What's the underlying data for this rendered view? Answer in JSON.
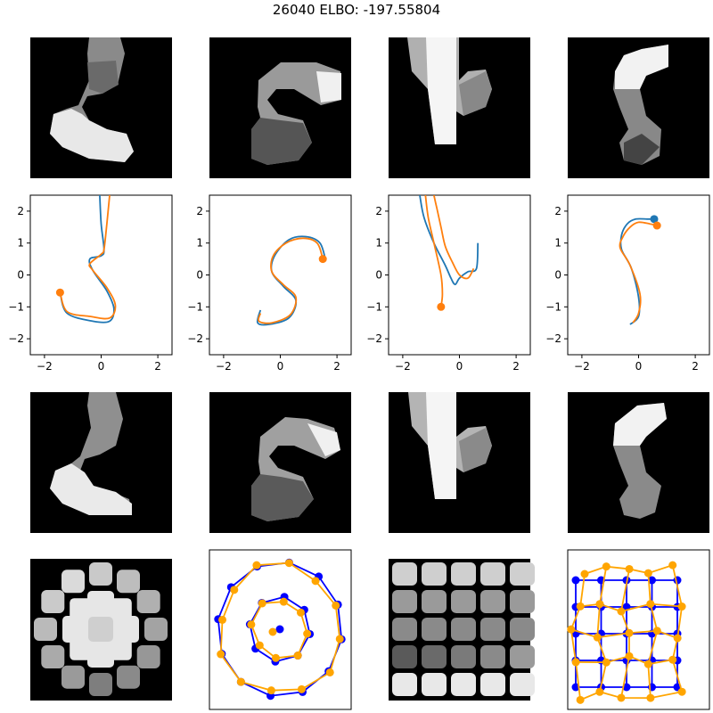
{
  "title": "26040 ELBO: -197.55804",
  "colors": {
    "series1": "#1f77b4",
    "series2": "#ff7f0e",
    "grid_blue": "#0000ff",
    "grid_orange": "#ffa500"
  },
  "chart_data": [
    {
      "type": "heatmap",
      "row": 1,
      "panels": [
        "image-1 (digit-like grayscale)",
        "image-2",
        "image-3",
        "image-4"
      ]
    },
    {
      "type": "line",
      "row": 2,
      "xlim": [
        -2.5,
        2.5
      ],
      "ylim": [
        -2.5,
        2.5
      ],
      "xticks": [
        -2,
        0,
        2
      ],
      "yticks": [
        2,
        1,
        0,
        -1,
        -2
      ],
      "panels": [
        {
          "series": [
            {
              "color": "#1f77b4",
              "x": [
                -0.05,
                0.0,
                0.1,
                0.0,
                -0.4,
                -0.3,
                0.2,
                0.45,
                0.3,
                -0.3,
                -1.2,
                -1.45
              ],
              "y": [
                2.5,
                1.6,
                0.8,
                0.6,
                0.5,
                0.15,
                -0.5,
                -1.05,
                -1.45,
                -1.45,
                -1.2,
                -0.55
              ]
            },
            {
              "color": "#ff7f0e",
              "x": [
                0.3,
                0.2,
                0.1,
                0.0,
                -0.4,
                -0.3,
                0.2,
                0.5,
                0.3,
                -0.4,
                -1.2,
                -1.45
              ],
              "y": [
                2.5,
                1.6,
                0.8,
                0.65,
                0.35,
                0.15,
                -0.4,
                -0.95,
                -1.35,
                -1.3,
                -1.15,
                -0.55
              ],
              "marker_end": [
                -1.45,
                -0.55
              ]
            }
          ]
        },
        {
          "series": [
            {
              "color": "#1f77b4",
              "x": [
                1.6,
                1.4,
                0.9,
                0.3,
                -0.2,
                -0.3,
                0.1,
                0.55,
                0.3,
                -0.4,
                -0.8,
                -0.7
              ],
              "y": [
                0.45,
                1.0,
                1.2,
                1.1,
                0.6,
                0.1,
                -0.35,
                -0.8,
                -1.35,
                -1.55,
                -1.5,
                -1.1
              ]
            },
            {
              "color": "#ff7f0e",
              "x": [
                1.5,
                1.3,
                0.8,
                0.2,
                -0.25,
                -0.3,
                0.1,
                0.55,
                0.35,
                -0.3,
                -0.75,
                -0.7
              ],
              "y": [
                0.5,
                1.0,
                1.15,
                1.0,
                0.6,
                0.1,
                -0.3,
                -0.7,
                -1.25,
                -1.5,
                -1.45,
                -1.2
              ],
              "marker_end": [
                1.5,
                0.5
              ]
            }
          ]
        },
        {
          "series": [
            {
              "color": "#1f77b4",
              "x": [
                -1.4,
                -1.25,
                -0.9,
                -0.5,
                -0.3,
                -0.15,
                0.0,
                0.3,
                0.6,
                0.65
              ],
              "y": [
                2.5,
                1.8,
                1.0,
                0.3,
                -0.1,
                -0.3,
                -0.1,
                0.1,
                0.2,
                1.0
              ]
            },
            {
              "color": "#ff7f0e",
              "x": [
                -1.2,
                -1.1,
                -0.9,
                -0.65,
                -0.6,
                -0.65
              ],
              "y": [
                2.5,
                1.8,
                1.0,
                0.0,
                -0.6,
                -1.0
              ],
              "marker_end": [
                -0.65,
                -1.0
              ]
            },
            {
              "color": "#ff7f0e",
              "x": [
                -0.9,
                -0.8,
                -0.65,
                -0.5,
                -0.25,
                0.0,
                0.3,
                0.5
              ],
              "y": [
                2.5,
                2.1,
                1.5,
                0.9,
                0.4,
                0.0,
                -0.1,
                0.2
              ]
            }
          ]
        },
        {
          "series": [
            {
              "color": "#1f77b4",
              "x": [
                -0.3,
                0.0,
                0.0,
                -0.25,
                -0.6,
                -0.6,
                -0.4,
                -0.1,
                0.3,
                0.55
              ],
              "y": [
                -1.55,
                -1.3,
                -0.7,
                0.2,
                0.8,
                1.25,
                1.6,
                1.75,
                1.75,
                1.75
              ],
              "marker_end": [
                0.55,
                1.75
              ]
            },
            {
              "color": "#ff7f0e",
              "x": [
                -0.2,
                0.0,
                0.05,
                -0.3,
                -0.65,
                -0.55,
                -0.3,
                0.0,
                0.4,
                0.65
              ],
              "y": [
                -1.5,
                -1.2,
                -0.6,
                0.3,
                0.85,
                1.2,
                1.5,
                1.65,
                1.6,
                1.55
              ],
              "marker_end": [
                0.65,
                1.55
              ]
            }
          ]
        }
      ]
    },
    {
      "type": "heatmap",
      "row": 3,
      "panels": [
        "reconstruction-1",
        "reconstruction-2",
        "reconstruction-3",
        "reconstruction-4"
      ]
    },
    {
      "type": "heatmap",
      "row": 4,
      "panels": [
        "latent-grid-image-1",
        "circle-latent-plot",
        "latent-grid-image-2",
        "warped-grid-plot"
      ]
    }
  ]
}
